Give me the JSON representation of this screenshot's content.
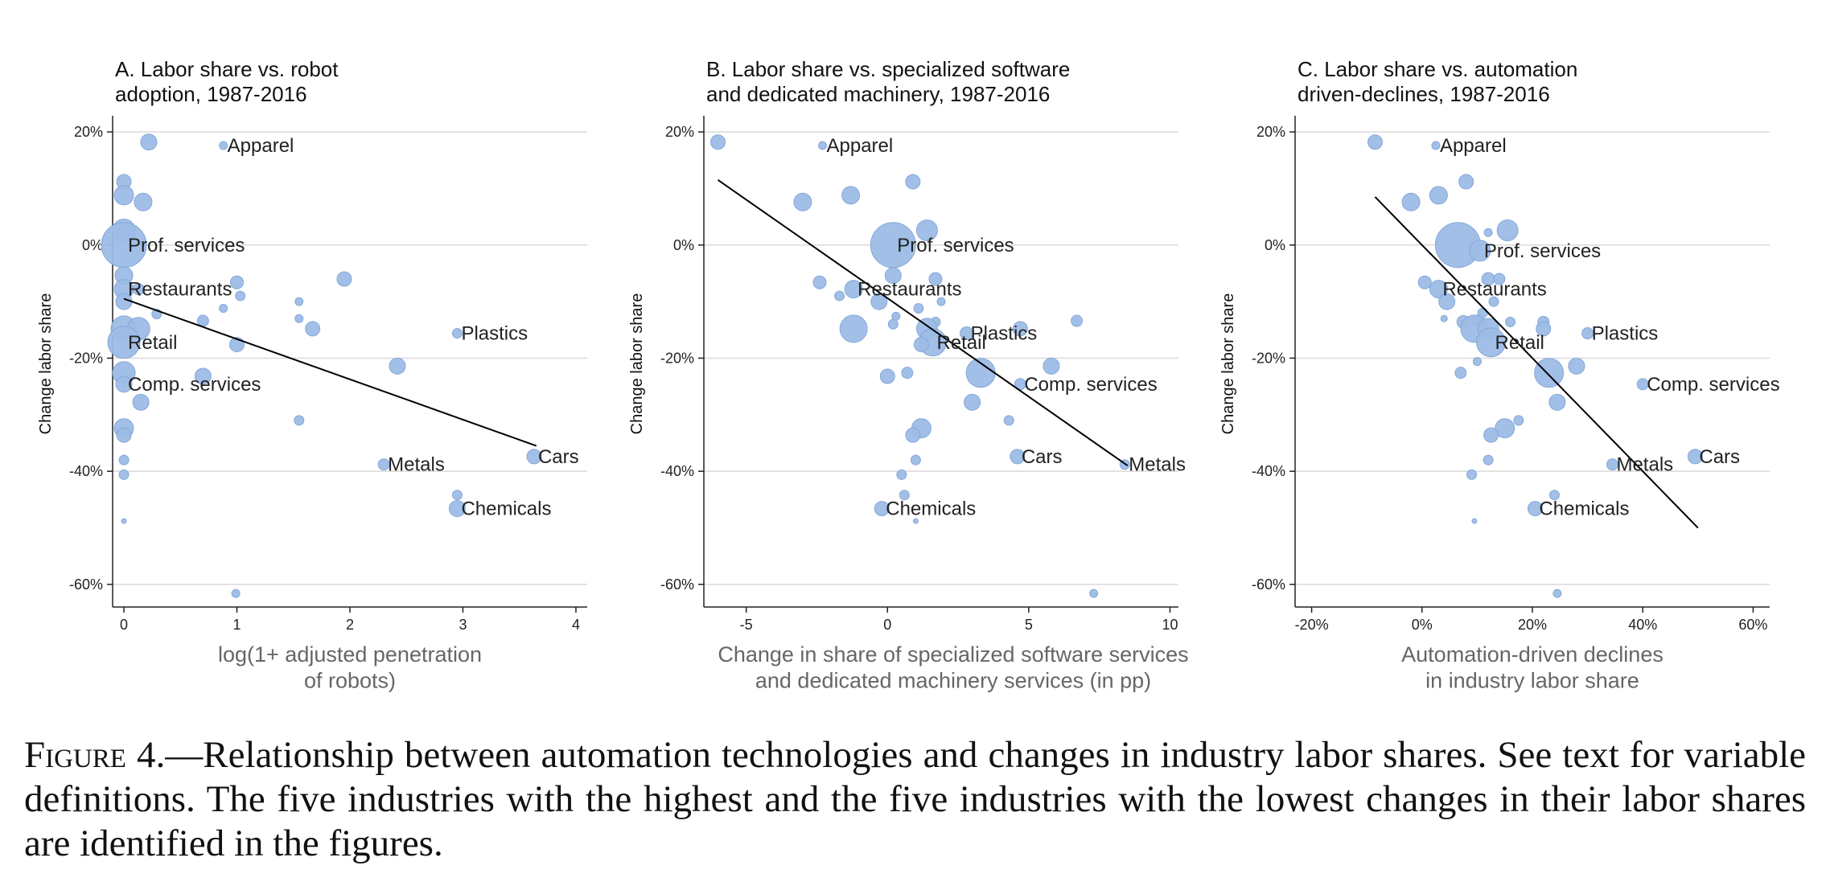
{
  "chart_data": [
    {
      "type": "scatter",
      "title": "A. Labor share vs. robot\nadoption, 1987-2016",
      "xlabel": "log(1+ adjusted penetration\nof robots)",
      "ylabel": "Change labor share",
      "xlim": [
        -0.1,
        4.1
      ],
      "ylim": [
        -64,
        22
      ],
      "xticks": [
        0,
        1,
        2,
        3,
        4
      ],
      "xtick_labels": [
        "0",
        "1",
        "2",
        "3",
        "4"
      ],
      "yticks": [
        20,
        0,
        -20,
        -40,
        -60
      ],
      "ytick_labels": [
        "20%",
        "0%",
        "-20%",
        "-40%",
        "-60%"
      ],
      "fit_line": [
        [
          0.0,
          -9.5
        ],
        [
          3.65,
          -35.5
        ]
      ],
      "points": [
        {
          "x": 0.22,
          "y": 18.2,
          "s": 10
        },
        {
          "x": 0.88,
          "y": 17.6,
          "s": 5,
          "label": "Apparel"
        },
        {
          "x": 0.0,
          "y": 11.2,
          "s": 9
        },
        {
          "x": 0.0,
          "y": 8.8,
          "s": 12
        },
        {
          "x": 0.17,
          "y": 7.6,
          "s": 11
        },
        {
          "x": 0.0,
          "y": 2.6,
          "s": 14
        },
        {
          "x": 0.0,
          "y": 0.0,
          "s": 28,
          "label": "Prof. services"
        },
        {
          "x": 0.0,
          "y": -5.4,
          "s": 11
        },
        {
          "x": 0.0,
          "y": -7.8,
          "s": 12,
          "label": "Restaurants"
        },
        {
          "x": 0.13,
          "y": -7.8,
          "s": 7
        },
        {
          "x": 0.0,
          "y": -10.0,
          "s": 10
        },
        {
          "x": 1.0,
          "y": -6.6,
          "s": 8
        },
        {
          "x": 1.03,
          "y": -9.0,
          "s": 6
        },
        {
          "x": 1.95,
          "y": -6.0,
          "s": 9
        },
        {
          "x": 0.88,
          "y": -11.2,
          "s": 5
        },
        {
          "x": 1.55,
          "y": -10.0,
          "s": 5
        },
        {
          "x": 1.55,
          "y": -13.0,
          "s": 5
        },
        {
          "x": 0.7,
          "y": -13.4,
          "s": 7
        },
        {
          "x": 0.29,
          "y": -12.2,
          "s": 6
        },
        {
          "x": 0.0,
          "y": -14.8,
          "s": 16
        },
        {
          "x": 0.13,
          "y": -14.8,
          "s": 14
        },
        {
          "x": 1.67,
          "y": -14.8,
          "s": 9
        },
        {
          "x": 0.0,
          "y": -17.2,
          "s": 20,
          "label": "Retail"
        },
        {
          "x": 1.0,
          "y": -17.6,
          "s": 9
        },
        {
          "x": 2.42,
          "y": -21.4,
          "s": 10
        },
        {
          "x": 0.0,
          "y": -22.6,
          "s": 14
        },
        {
          "x": 0.7,
          "y": -23.2,
          "s": 10
        },
        {
          "x": 0.0,
          "y": -24.6,
          "s": 10,
          "label": "Comp. services"
        },
        {
          "x": 0.15,
          "y": -27.8,
          "s": 10
        },
        {
          "x": 1.55,
          "y": -31.0,
          "s": 6
        },
        {
          "x": 0.0,
          "y": -32.4,
          "s": 12
        },
        {
          "x": 0.0,
          "y": -33.6,
          "s": 9
        },
        {
          "x": 0.0,
          "y": -38.0,
          "s": 6
        },
        {
          "x": 2.3,
          "y": -38.8,
          "s": 7,
          "label": "Metals"
        },
        {
          "x": 0.0,
          "y": -40.6,
          "s": 6
        },
        {
          "x": 2.95,
          "y": -44.2,
          "s": 6
        },
        {
          "x": 2.95,
          "y": -46.6,
          "s": 10,
          "label": "Chemicals"
        },
        {
          "x": 0.0,
          "y": -48.8,
          "s": 3
        },
        {
          "x": 0.99,
          "y": -61.6,
          "s": 5
        },
        {
          "x": 2.95,
          "y": -15.6,
          "s": 6,
          "label": "Plastics"
        },
        {
          "x": 3.63,
          "y": -37.4,
          "s": 9,
          "label": "Cars"
        }
      ]
    },
    {
      "type": "scatter",
      "title": "B. Labor share vs. specialized software\nand dedicated machinery, 1987-2016",
      "xlabel": "Change in share of specialized software services\nand dedicated machinery services (in pp)",
      "ylabel": "Change labor share",
      "xlim": [
        -6.5,
        10.3
      ],
      "ylim": [
        -64,
        22
      ],
      "xticks": [
        -5,
        0,
        5,
        10
      ],
      "xtick_labels": [
        "-5",
        "0",
        "5",
        "10"
      ],
      "yticks": [
        20,
        0,
        -20,
        -40,
        -60
      ],
      "ytick_labels": [
        "20%",
        "0%",
        "-20%",
        "-40%",
        "-60%"
      ],
      "fit_line": [
        [
          -6.0,
          11.5
        ],
        [
          8.5,
          -39.0
        ]
      ],
      "points": [
        {
          "x": -6.0,
          "y": 18.2,
          "s": 9
        },
        {
          "x": -2.3,
          "y": 17.6,
          "s": 5,
          "label": "Apparel"
        },
        {
          "x": 0.9,
          "y": 11.2,
          "s": 9
        },
        {
          "x": -1.3,
          "y": 8.8,
          "s": 11
        },
        {
          "x": -3.0,
          "y": 7.6,
          "s": 11
        },
        {
          "x": 1.4,
          "y": 2.6,
          "s": 13
        },
        {
          "x": 0.2,
          "y": 0.0,
          "s": 28,
          "label": "Prof. services"
        },
        {
          "x": 0.2,
          "y": -5.4,
          "s": 10
        },
        {
          "x": -1.2,
          "y": -7.8,
          "s": 11,
          "label": "Restaurants"
        },
        {
          "x": 1.7,
          "y": -6.0,
          "s": 8
        },
        {
          "x": -2.4,
          "y": -6.6,
          "s": 8
        },
        {
          "x": -1.7,
          "y": -9.0,
          "s": 6
        },
        {
          "x": -0.3,
          "y": -10.0,
          "s": 10
        },
        {
          "x": 1.9,
          "y": -10.0,
          "s": 5
        },
        {
          "x": 0.3,
          "y": -12.6,
          "s": 5
        },
        {
          "x": 1.1,
          "y": -11.2,
          "s": 6
        },
        {
          "x": 6.7,
          "y": -13.4,
          "s": 7
        },
        {
          "x": 0.2,
          "y": -14.0,
          "s": 6
        },
        {
          "x": 1.7,
          "y": -13.6,
          "s": 6
        },
        {
          "x": -1.2,
          "y": -14.8,
          "s": 17
        },
        {
          "x": 1.4,
          "y": -14.8,
          "s": 13
        },
        {
          "x": 4.7,
          "y": -14.8,
          "s": 9
        },
        {
          "x": 2.8,
          "y": -15.6,
          "s": 8,
          "label": "Plastics"
        },
        {
          "x": 1.6,
          "y": -17.2,
          "s": 17,
          "label": "Retail"
        },
        {
          "x": 1.2,
          "y": -17.6,
          "s": 9
        },
        {
          "x": 5.8,
          "y": -21.4,
          "s": 10
        },
        {
          "x": 0.7,
          "y": -22.6,
          "s": 7
        },
        {
          "x": 3.3,
          "y": -22.6,
          "s": 18
        },
        {
          "x": 0.0,
          "y": -23.2,
          "s": 9
        },
        {
          "x": 4.7,
          "y": -24.6,
          "s": 7,
          "label": "Comp. services"
        },
        {
          "x": 3.0,
          "y": -27.8,
          "s": 10
        },
        {
          "x": 4.3,
          "y": -31.0,
          "s": 6
        },
        {
          "x": 1.2,
          "y": -32.4,
          "s": 12
        },
        {
          "x": 0.9,
          "y": -33.6,
          "s": 9
        },
        {
          "x": 4.6,
          "y": -37.4,
          "s": 9,
          "label": "Cars"
        },
        {
          "x": 1.0,
          "y": -38.0,
          "s": 6
        },
        {
          "x": 8.4,
          "y": -38.8,
          "s": 6,
          "label": "Metals"
        },
        {
          "x": 0.5,
          "y": -40.6,
          "s": 6
        },
        {
          "x": 0.6,
          "y": -44.2,
          "s": 6
        },
        {
          "x": -0.2,
          "y": -46.6,
          "s": 9,
          "label": "Chemicals"
        },
        {
          "x": 1.0,
          "y": -48.8,
          "s": 3
        },
        {
          "x": 7.3,
          "y": -61.6,
          "s": 5
        }
      ]
    },
    {
      "type": "scatter",
      "title": "C. Labor share vs. automation\ndriven-declines, 1987-2016",
      "xlabel": "Automation-driven declines\nin industry labor share",
      "ylabel": "Change labor share",
      "xlim": [
        -23,
        63
      ],
      "ylim": [
        -64,
        22
      ],
      "xticks": [
        -20,
        0,
        20,
        40,
        60
      ],
      "xtick_labels": [
        "-20%",
        "0%",
        "20%",
        "40%",
        "60%"
      ],
      "yticks": [
        20,
        0,
        -20,
        -40,
        -60
      ],
      "ytick_labels": [
        "20%",
        "0%",
        "-20%",
        "-40%",
        "-60%"
      ],
      "fit_line": [
        [
          -8.5,
          8.5
        ],
        [
          50.0,
          -50.0
        ]
      ],
      "points": [
        {
          "x": -8.5,
          "y": 18.2,
          "s": 9
        },
        {
          "x": 2.5,
          "y": 17.6,
          "s": 5,
          "label": "Apparel"
        },
        {
          "x": 8.0,
          "y": 11.2,
          "s": 9
        },
        {
          "x": 3.0,
          "y": 8.8,
          "s": 11
        },
        {
          "x": -2.0,
          "y": 7.6,
          "s": 11
        },
        {
          "x": 15.5,
          "y": 2.6,
          "s": 13
        },
        {
          "x": 12.0,
          "y": 2.2,
          "s": 5
        },
        {
          "x": 6.5,
          "y": 0.0,
          "s": 28
        },
        {
          "x": 10.5,
          "y": -1.0,
          "s": 13,
          "label": "Prof. services"
        },
        {
          "x": 3.0,
          "y": -7.8,
          "s": 11,
          "label": "Restaurants"
        },
        {
          "x": 12.0,
          "y": -6.0,
          "s": 8
        },
        {
          "x": 14.0,
          "y": -6.0,
          "s": 7
        },
        {
          "x": 0.5,
          "y": -6.6,
          "s": 8
        },
        {
          "x": 13.0,
          "y": -10.0,
          "s": 6
        },
        {
          "x": 4.5,
          "y": -10.0,
          "s": 10
        },
        {
          "x": 11.0,
          "y": -12.0,
          "s": 6
        },
        {
          "x": 4.0,
          "y": -13.0,
          "s": 4
        },
        {
          "x": 7.5,
          "y": -13.6,
          "s": 8
        },
        {
          "x": 10.0,
          "y": -13.4,
          "s": 7
        },
        {
          "x": 16.0,
          "y": -13.6,
          "s": 6
        },
        {
          "x": 22.0,
          "y": -13.6,
          "s": 7
        },
        {
          "x": 9.5,
          "y": -14.8,
          "s": 17
        },
        {
          "x": 12.0,
          "y": -14.8,
          "s": 13
        },
        {
          "x": 22.0,
          "y": -14.8,
          "s": 9
        },
        {
          "x": 30.0,
          "y": -15.6,
          "s": 7,
          "label": "Plastics"
        },
        {
          "x": 12.5,
          "y": -17.2,
          "s": 18,
          "label": "Retail"
        },
        {
          "x": 10.0,
          "y": -20.6,
          "s": 5
        },
        {
          "x": 7.0,
          "y": -22.6,
          "s": 7
        },
        {
          "x": 28.0,
          "y": -21.4,
          "s": 10
        },
        {
          "x": 23.0,
          "y": -22.6,
          "s": 18
        },
        {
          "x": 40.0,
          "y": -24.6,
          "s": 7,
          "label": "Comp. services"
        },
        {
          "x": 24.5,
          "y": -27.8,
          "s": 10
        },
        {
          "x": 17.5,
          "y": -31.0,
          "s": 6
        },
        {
          "x": 15.0,
          "y": -32.4,
          "s": 12
        },
        {
          "x": 12.5,
          "y": -33.6,
          "s": 9
        },
        {
          "x": 49.5,
          "y": -37.4,
          "s": 9,
          "label": "Cars"
        },
        {
          "x": 12.0,
          "y": -38.0,
          "s": 6
        },
        {
          "x": 34.5,
          "y": -38.8,
          "s": 7,
          "label": "Metals"
        },
        {
          "x": 9.0,
          "y": -40.6,
          "s": 6
        },
        {
          "x": 24.0,
          "y": -44.2,
          "s": 6
        },
        {
          "x": 20.5,
          "y": -46.6,
          "s": 9,
          "label": "Chemicals"
        },
        {
          "x": 9.5,
          "y": -48.8,
          "s": 3
        },
        {
          "x": 24.5,
          "y": -61.6,
          "s": 5
        }
      ]
    }
  ],
  "caption": {
    "label": "Figure 4.",
    "text": "—Relationship between automation technologies and changes in industry labor shares. See text for variable definitions. The five industries with the highest and the five industries with the lowest changes in their labor shares are identified in the figures."
  }
}
